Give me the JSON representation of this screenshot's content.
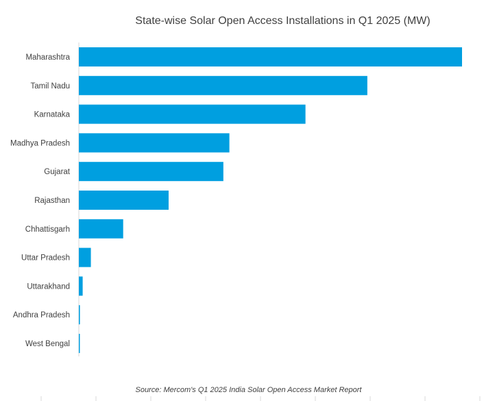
{
  "chart_data": {
    "type": "bar",
    "orientation": "horizontal",
    "title": "State-wise Solar Open Access Installations in Q1 2025 (MW)",
    "categories": [
      "Maharashtra",
      "Tamil Nadu",
      "Karnataka",
      "Madhya Pradesh",
      "Gujarat",
      "Rajasthan",
      "Chhattisgarh",
      "Uttar Pradesh",
      "Uttarakhand",
      "Andhra Pradesh",
      "West Bengal"
    ],
    "values": [
      700,
      527,
      414,
      275,
      264,
      164,
      81,
      22,
      7,
      2,
      1
    ],
    "xlim": [
      0,
      700
    ],
    "bar_color": "#009FE0",
    "grid": false,
    "legend": "none",
    "source": "Source: Mercom's Q1 2025 India Solar Open Access Market Report"
  }
}
